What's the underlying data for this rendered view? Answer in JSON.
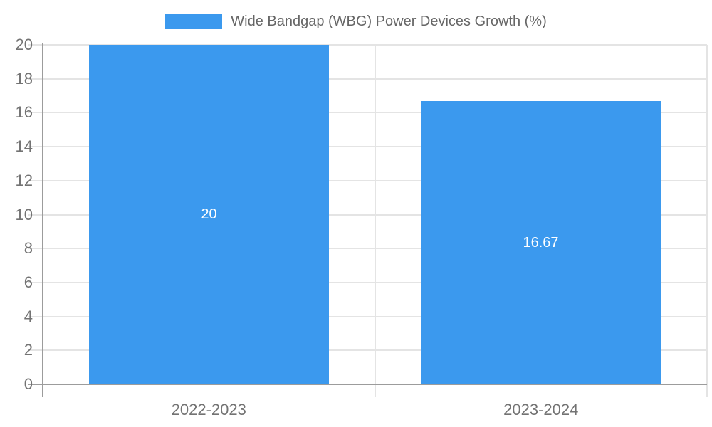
{
  "chart_data": {
    "type": "bar",
    "title": "Wide Bandgap (WBG) Power Devices Growth (%)",
    "categories": [
      "2022-2023",
      "2023-2024"
    ],
    "values": [
      20,
      16.67
    ],
    "value_labels": [
      "20",
      "16.67"
    ],
    "xlabel": "",
    "ylabel": "",
    "ylim": [
      0,
      20
    ],
    "ytick_step": 2,
    "ytick_labels": [
      "0",
      "2",
      "4",
      "6",
      "8",
      "10",
      "12",
      "14",
      "16",
      "18",
      "20"
    ],
    "grid": true,
    "legend_position": "top-center",
    "colors": {
      "bar": "#3B99EE",
      "grid": "#E4E4E4",
      "axis": "#9C9C9C",
      "tick_text": "#737373",
      "legend_text": "#666666",
      "value_text": "#FFFFFF",
      "background": "#FFFFFF"
    }
  }
}
